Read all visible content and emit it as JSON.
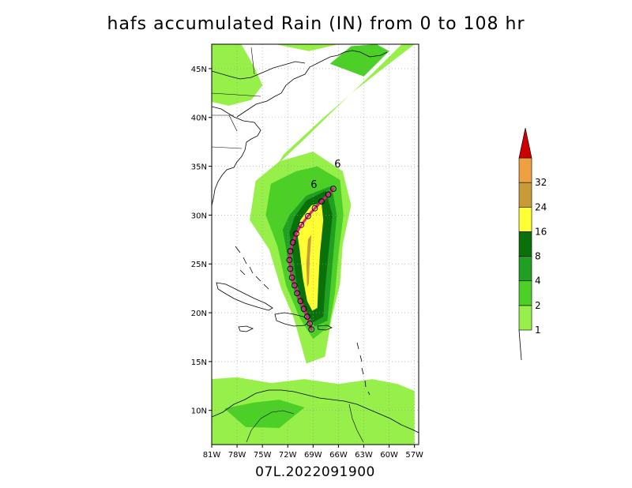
{
  "chart_data": {
    "type": "heatmap",
    "title": "hafs accumulated Rain (IN) from 0 to 108 hr",
    "subtitle": "07L.2022091900",
    "xaxis": {
      "ticks": [
        "81W",
        "78W",
        "75W",
        "72W",
        "69W",
        "66W",
        "63W",
        "60W",
        "57W"
      ],
      "tick_values": [
        -81,
        -78,
        -75,
        -72,
        -69,
        -66,
        -63,
        -60,
        -57
      ],
      "range": [
        -81,
        -56.5
      ]
    },
    "yaxis": {
      "ticks": [
        "10N",
        "15N",
        "20N",
        "25N",
        "30N",
        "35N",
        "40N",
        "45N"
      ],
      "tick_values": [
        10,
        15,
        20,
        25,
        30,
        35,
        40,
        45
      ],
      "range": [
        6.5,
        47.5
      ]
    },
    "grid": true,
    "colorbar": {
      "levels": [
        1,
        2,
        4,
        8,
        16,
        24,
        32
      ],
      "labels": [
        "1",
        "2",
        "4",
        "8",
        "16",
        "24",
        "32"
      ],
      "colors": [
        "#97f04a",
        "#4cd028",
        "#20a020",
        "#0a700a",
        "#ffff33",
        "#c89a38",
        "#f0a040",
        "#cc0000"
      ]
    },
    "rain_swaths": [
      {
        "level": 1,
        "color": "#97f04a",
        "polygon": [
          [
            -75.8,
            33.5
          ],
          [
            -73,
            35.5
          ],
          [
            -69,
            36.5
          ],
          [
            -65.5,
            34.5
          ],
          [
            -64.5,
            31
          ],
          [
            -65.5,
            27
          ],
          [
            -65.8,
            23
          ],
          [
            -66.8,
            19.5
          ],
          [
            -67.6,
            15.5
          ],
          [
            -69.8,
            14.8
          ],
          [
            -71.3,
            19.5
          ],
          [
            -72.8,
            22.5
          ],
          [
            -74.2,
            26.5
          ],
          [
            -76.5,
            29.5
          ]
        ]
      },
      {
        "level": 1,
        "color": "#97f04a",
        "polygon": [
          [
            -81,
            13.2
          ],
          [
            -78,
            13.4
          ],
          [
            -74,
            12.8
          ],
          [
            -70,
            13.2
          ],
          [
            -66,
            12.7
          ],
          [
            -62,
            13.2
          ],
          [
            -59,
            12.7
          ],
          [
            -57,
            12
          ],
          [
            -57,
            6.5
          ],
          [
            -81,
            6.5
          ]
        ]
      },
      {
        "level": 1,
        "color": "#97f04a",
        "polygon": [
          [
            -81,
            47.5
          ],
          [
            -77.5,
            47.5
          ],
          [
            -76,
            45.2
          ],
          [
            -75,
            43.3
          ],
          [
            -76.3,
            41.8
          ],
          [
            -79,
            41.2
          ],
          [
            -81,
            41.6
          ]
        ]
      },
      {
        "level": 1,
        "color": "#97f04a",
        "polygon": [
          [
            -72.5,
            36.2
          ],
          [
            -68,
            39.8
          ],
          [
            -64,
            42.8
          ],
          [
            -60,
            45.5
          ],
          [
            -57,
            47.5
          ],
          [
            -58.5,
            47.5
          ],
          [
            -62,
            44.5
          ],
          [
            -66,
            41.2
          ],
          [
            -70,
            37.8
          ],
          [
            -73.2,
            35.2
          ]
        ]
      },
      {
        "level": 1,
        "color": "#97f04a",
        "polygon": [
          [
            -73.5,
            47.5
          ],
          [
            -69.5,
            46.8
          ],
          [
            -66,
            47.5
          ]
        ]
      },
      {
        "level": 2,
        "color": "#4cd028",
        "polygon": [
          [
            -74,
            33.2
          ],
          [
            -71,
            34.5
          ],
          [
            -68.5,
            35
          ],
          [
            -65.8,
            33.6
          ],
          [
            -65.4,
            30
          ],
          [
            -66,
            26
          ],
          [
            -66.4,
            22
          ],
          [
            -67.1,
            18.6
          ],
          [
            -69,
            17.3
          ],
          [
            -70.6,
            19.5
          ],
          [
            -72.2,
            22.8
          ],
          [
            -73.2,
            26.8
          ],
          [
            -74.6,
            30
          ]
        ]
      },
      {
        "level": 2,
        "color": "#4cd028",
        "polygon": [
          [
            -79.5,
            10.2
          ],
          [
            -76,
            10.8
          ],
          [
            -73,
            11.1
          ],
          [
            -70,
            10.3
          ],
          [
            -73,
            8.2
          ],
          [
            -77,
            8.3
          ]
        ]
      },
      {
        "level": 2,
        "color": "#4cd028",
        "polygon": [
          [
            -67,
            45.5
          ],
          [
            -63,
            44.2
          ],
          [
            -60,
            46.8
          ],
          [
            -61.5,
            47.5
          ],
          [
            -64.5,
            47.3
          ]
        ]
      },
      {
        "level": 4,
        "color": "#20a020",
        "polygon": [
          [
            -71.8,
            30
          ],
          [
            -69.8,
            32
          ],
          [
            -66.8,
            33
          ],
          [
            -66.2,
            30
          ],
          [
            -66.6,
            26
          ],
          [
            -67,
            22
          ],
          [
            -67.3,
            19.2
          ],
          [
            -68.8,
            18.6
          ],
          [
            -70.4,
            20.2
          ],
          [
            -71.6,
            23.2
          ],
          [
            -72.2,
            26.6
          ],
          [
            -72.6,
            28.5
          ]
        ]
      },
      {
        "level": 8,
        "color": "#0a700a",
        "polygon": [
          [
            -71.2,
            29.8
          ],
          [
            -69.8,
            31.5
          ],
          [
            -67.5,
            32.5
          ],
          [
            -66.7,
            30
          ],
          [
            -67.2,
            26
          ],
          [
            -67.6,
            22.2
          ],
          [
            -67.8,
            19.6
          ],
          [
            -69,
            19
          ],
          [
            -70.2,
            20.5
          ],
          [
            -71,
            23.3
          ],
          [
            -71.5,
            26.5
          ],
          [
            -71.8,
            28.2
          ]
        ]
      },
      {
        "level": 16,
        "color": "#ffff33",
        "polygon": [
          [
            -70.5,
            29.5
          ],
          [
            -69.2,
            31
          ],
          [
            -68,
            31.2
          ],
          [
            -67.8,
            29.5
          ],
          [
            -68.2,
            26
          ],
          [
            -68.4,
            22.5
          ],
          [
            -68.5,
            20.5
          ],
          [
            -69.1,
            20.2
          ],
          [
            -69.7,
            21.2
          ],
          [
            -70.2,
            23.5
          ],
          [
            -70.6,
            26.5
          ],
          [
            -70.9,
            28.3
          ]
        ]
      },
      {
        "level": 24,
        "color": "#c89a38",
        "polygon": [
          [
            -69.6,
            27.5
          ],
          [
            -69.2,
            28
          ],
          [
            -69.4,
            25.5
          ],
          [
            -69.5,
            23
          ],
          [
            -69.7,
            22.6
          ],
          [
            -69.8,
            25
          ]
        ]
      }
    ],
    "track": {
      "color": "#e0208a",
      "points": [
        [
          -69.2,
          18.3
        ],
        [
          -69.4,
          18.9
        ],
        [
          -69.7,
          19.6
        ],
        [
          -70.1,
          20.4
        ],
        [
          -70.5,
          21.2
        ],
        [
          -70.9,
          22.0
        ],
        [
          -71.2,
          22.8
        ],
        [
          -71.5,
          23.6
        ],
        [
          -71.7,
          24.5
        ],
        [
          -71.8,
          25.4
        ],
        [
          -71.7,
          26.3
        ],
        [
          -71.4,
          27.2
        ],
        [
          -71.0,
          28.1
        ],
        [
          -70.4,
          29.0
        ],
        [
          -69.6,
          29.9
        ],
        [
          -68.8,
          30.7
        ],
        [
          -68.0,
          31.4
        ],
        [
          -67.2,
          32.1
        ],
        [
          -66.6,
          32.7
        ]
      ]
    },
    "ensemble_label": "6",
    "ensemble_label_points": [
      [
        -66.1,
        34.9
      ],
      [
        -68.9,
        32.8
      ]
    ]
  }
}
